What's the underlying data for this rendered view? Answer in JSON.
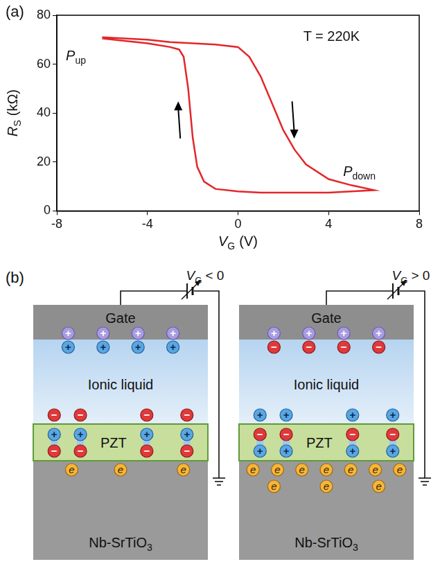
{
  "chart_data": {
    "type": "line",
    "panel_label": "(a)",
    "xlabel": {
      "text": "V",
      "subscript": "G",
      "unit": "(V)"
    },
    "ylabel": {
      "text": "R",
      "subscript": "S",
      "unit": "(kΩ)"
    },
    "x": [
      -6,
      -5,
      -4,
      -3,
      -2,
      -1,
      0,
      0.5,
      1,
      1.5,
      2,
      2.5,
      3,
      4,
      5,
      6,
      5,
      4,
      3,
      2,
      1,
      0,
      -1,
      -1.5,
      -1.8,
      -2,
      -2.2,
      -2.4,
      -2.6,
      -3,
      -4,
      -5,
      -6
    ],
    "values": [
      71,
      70.5,
      70,
      69,
      68.5,
      68,
      67,
      63,
      55,
      44,
      33,
      25,
      19,
      13,
      10.5,
      8.5,
      8,
      7.5,
      7.5,
      7.5,
      7.5,
      8,
      9,
      12,
      18,
      30,
      50,
      63,
      66,
      67,
      68.5,
      69.5,
      70.5
    ],
    "color": "#e3262a",
    "xlim": [
      -8,
      8
    ],
    "xticks": [
      -8,
      -4,
      0,
      4,
      8
    ],
    "ylim": [
      0,
      80
    ],
    "yticks": [
      0,
      20,
      40,
      60,
      80
    ],
    "grid": false,
    "annotations": [
      {
        "text": "P",
        "subscript": "up"
      },
      {
        "text": "T = 220K"
      },
      {
        "text": "P",
        "subscript": "down"
      }
    ]
  },
  "diagram": {
    "panel_label": "(b)",
    "symbols": {
      "positive": "+",
      "negative": "−",
      "electron": "e"
    },
    "panels": [
      {
        "bias": {
          "text": "V",
          "subscript": "G",
          "relation": "< 0"
        },
        "layers": {
          "gate": "Gate",
          "electrolyte": "Ionic liquid",
          "ferroelectric": "PZT",
          "substrate": {
            "text": "Nb-SrTiO",
            "subscript": "3"
          }
        }
      },
      {
        "bias": {
          "text": "V",
          "subscript": "G",
          "relation": "> 0"
        },
        "layers": {
          "gate": "Gate",
          "electrolyte": "Ionic liquid",
          "ferroelectric": "PZT",
          "substrate": {
            "text": "Nb-SrTiO",
            "subscript": "3"
          }
        }
      }
    ]
  }
}
